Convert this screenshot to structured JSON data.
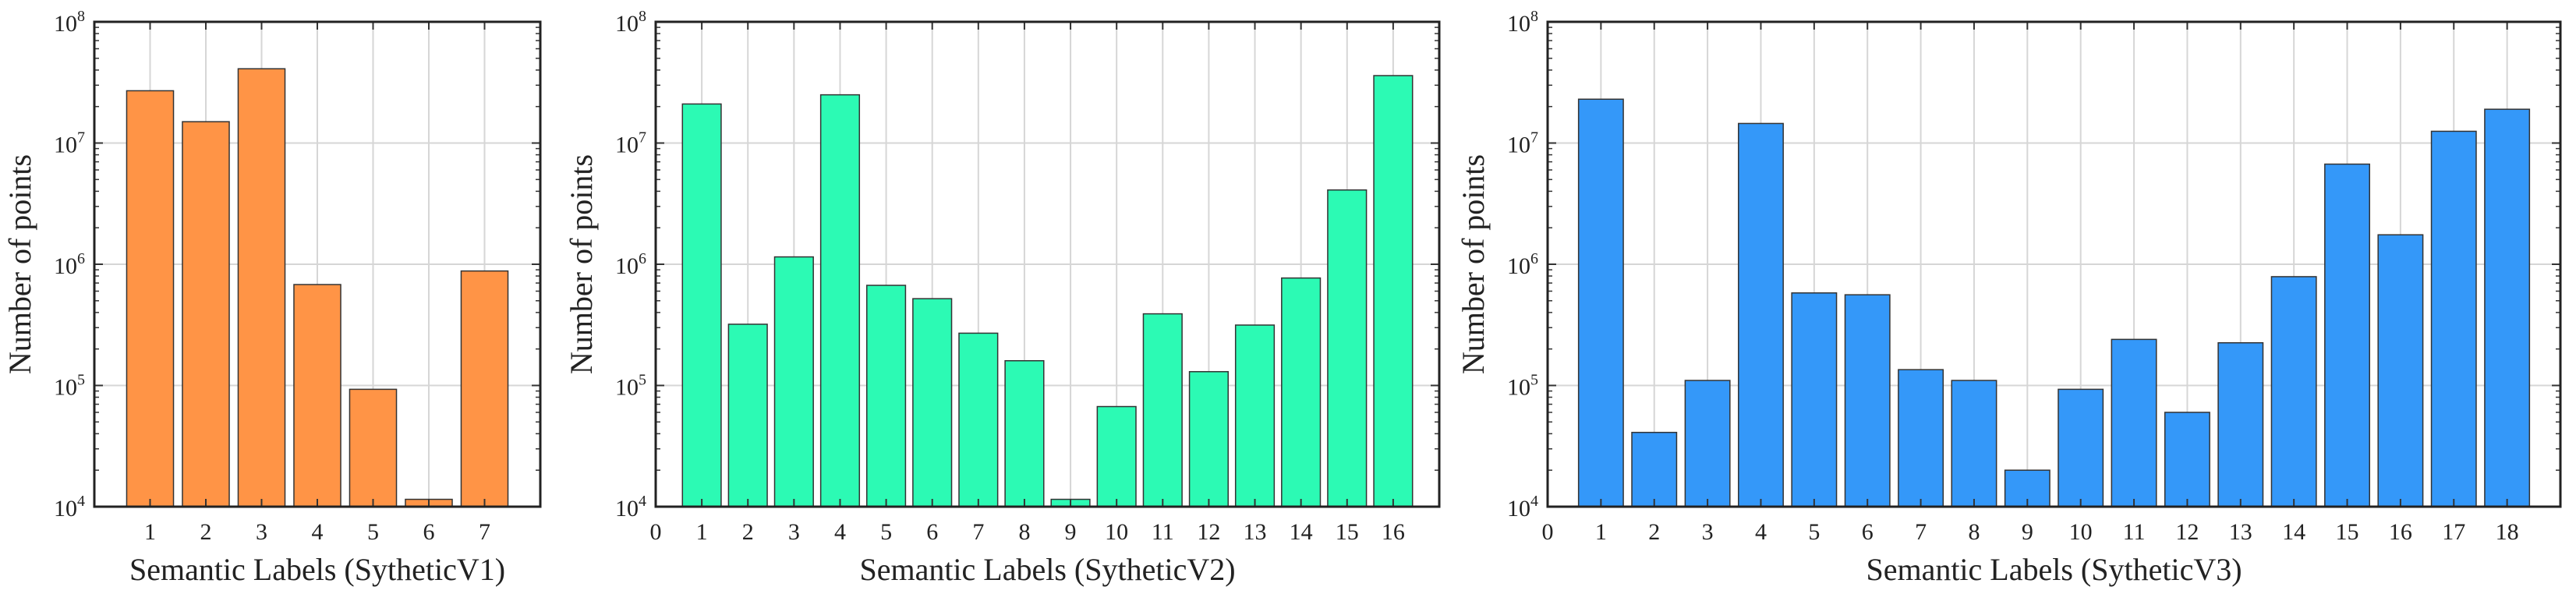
{
  "chart_data": [
    {
      "type": "bar",
      "title": "",
      "xlabel": "Semantic Labels (SytheticV1)",
      "ylabel": "Number of points",
      "yscale": "log",
      "ylim": [
        10000,
        100000000
      ],
      "ytick_labels": [
        {
          "base": "10",
          "exp": "4"
        },
        {
          "base": "10",
          "exp": "5"
        },
        {
          "base": "10",
          "exp": "6"
        },
        {
          "base": "10",
          "exp": "7"
        },
        {
          "base": "10",
          "exp": "8"
        }
      ],
      "xticks": [
        "1",
        "2",
        "3",
        "4",
        "5",
        "6",
        "7"
      ],
      "xlim": [
        0,
        8
      ],
      "categories": [
        "1",
        "2",
        "3",
        "4",
        "5",
        "6",
        "7"
      ],
      "values": [
        27000000,
        15000000,
        41000000,
        680000,
        93000,
        11500,
        880000
      ],
      "color": "#ff9446",
      "grid": true
    },
    {
      "type": "bar",
      "title": "",
      "xlabel": "Semantic Labels (SytheticV2)",
      "ylabel": "Number of points",
      "yscale": "log",
      "ylim": [
        10000,
        100000000
      ],
      "ytick_labels": [
        {
          "base": "10",
          "exp": "4"
        },
        {
          "base": "10",
          "exp": "5"
        },
        {
          "base": "10",
          "exp": "6"
        },
        {
          "base": "10",
          "exp": "7"
        },
        {
          "base": "10",
          "exp": "8"
        }
      ],
      "xticks": [
        "0",
        "1",
        "2",
        "3",
        "4",
        "5",
        "6",
        "7",
        "8",
        "9",
        "10",
        "11",
        "12",
        "13",
        "14",
        "15",
        "16"
      ],
      "xlim": [
        0,
        17
      ],
      "categories": [
        "1",
        "2",
        "3",
        "4",
        "5",
        "6",
        "7",
        "8",
        "9",
        "10",
        "11",
        "12",
        "13",
        "14",
        "15",
        "16"
      ],
      "values": [
        21000000,
        320000,
        1150000,
        25000000,
        670000,
        520000,
        270000,
        160000,
        11500,
        67000,
        390000,
        130000,
        315000,
        770000,
        4100000,
        36000000
      ],
      "color": "#2cfab4",
      "grid": true
    },
    {
      "type": "bar",
      "title": "",
      "xlabel": "Semantic Labels (SytheticV3)",
      "ylabel": "Number of points",
      "yscale": "log",
      "ylim": [
        10000,
        100000000
      ],
      "ytick_labels": [
        {
          "base": "10",
          "exp": "4"
        },
        {
          "base": "10",
          "exp": "5"
        },
        {
          "base": "10",
          "exp": "6"
        },
        {
          "base": "10",
          "exp": "7"
        },
        {
          "base": "10",
          "exp": "8"
        }
      ],
      "xticks": [
        "0",
        "1",
        "2",
        "3",
        "4",
        "5",
        "6",
        "7",
        "8",
        "9",
        "10",
        "11",
        "12",
        "13",
        "14",
        "15",
        "16",
        "17",
        "18"
      ],
      "xlim": [
        0,
        19
      ],
      "categories": [
        "1",
        "2",
        "3",
        "4",
        "5",
        "6",
        "7",
        "8",
        "9",
        "10",
        "11",
        "12",
        "13",
        "14",
        "15",
        "16",
        "17",
        "18"
      ],
      "values": [
        23000000,
        41000,
        110000,
        14500000,
        580000,
        560000,
        135000,
        110000,
        20000,
        93000,
        240000,
        60000,
        225000,
        790000,
        6700000,
        1750000,
        12500000,
        19000000
      ],
      "color": "#3498f9",
      "grid": true
    }
  ]
}
